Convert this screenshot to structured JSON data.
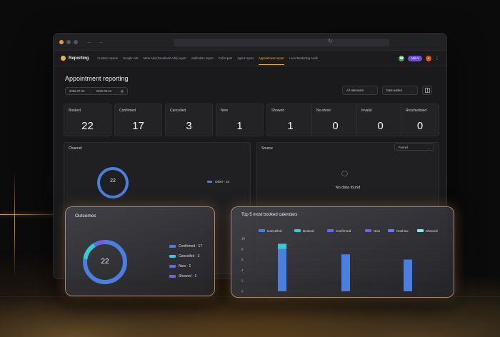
{
  "colors": {
    "accent": "#f0b232",
    "blue": "#4a7fe0",
    "cyan": "#38c8d8",
    "purple": "#7a5ce6",
    "indigo": "#5a6cf0"
  },
  "app": {
    "brand": "Reporting",
    "nav": [
      {
        "label": "Custom reports"
      },
      {
        "label": "Google Ads"
      },
      {
        "label": "Meta Ads (Facebook Ads) report"
      },
      {
        "label": "Attribution report"
      },
      {
        "label": "Call report"
      },
      {
        "label": "Agent report"
      },
      {
        "label": "Appointment report",
        "active": true
      },
      {
        "label": "Local Marketing Audit"
      }
    ],
    "ai_label": "Ask AI",
    "avatar_initial": "A"
  },
  "page": {
    "title": "Appointment reporting",
    "date_start": "2026-07-26",
    "date_end": "2026-08-24",
    "calendar_filter": "All calendars",
    "date_filter": "Date added"
  },
  "stats": [
    {
      "label": "Booked",
      "value": "22"
    },
    {
      "label": "Confirmed",
      "value": "17"
    },
    {
      "label": "Cancelled",
      "value": "3"
    },
    {
      "label": "New",
      "value": "1"
    },
    {
      "label": "Showed",
      "value": "1"
    },
    {
      "label": "No-show",
      "value": "0"
    },
    {
      "label": "Invalid",
      "value": "0"
    },
    {
      "label": "Rescheduled",
      "value": "0"
    }
  ],
  "channel": {
    "title": "Channel",
    "total": "22",
    "legend": "Other - 22"
  },
  "source": {
    "title": "Source",
    "select": "Funnel",
    "empty": "No data found"
  },
  "outcomes": {
    "title": "Outcomes",
    "total": "22",
    "legend": [
      {
        "label": "Confirmed - 17",
        "color": "#4a7fe0"
      },
      {
        "label": "Cancelled - 3",
        "color": "#38c8d8"
      },
      {
        "label": "New - 1",
        "color": "#5a6cf0"
      },
      {
        "label": "Showed - 1",
        "color": "#7a5ce6"
      }
    ]
  },
  "top_calendars": {
    "title": "Top 5 most booked calendars"
  },
  "chart_data": {
    "type": "bar",
    "stacked": true,
    "legend_position": "top",
    "categories": [
      "",
      "",
      ""
    ],
    "ylim": [
      0,
      10
    ],
    "yticks": [
      0,
      2,
      4,
      6,
      8,
      10
    ],
    "series": [
      {
        "name": "Cancelled",
        "color": "#4a7fe0",
        "values": [
          8,
          7,
          6
        ]
      },
      {
        "name": "Booked",
        "color": "#38c8d8",
        "values": [
          1,
          0,
          0
        ]
      },
      {
        "name": "Confirmed",
        "color": "#5a6cf0",
        "values": [
          0,
          0,
          0
        ]
      },
      {
        "name": "New",
        "color": "#7a5ce6",
        "values": [
          0,
          0,
          0
        ]
      },
      {
        "name": "Noshow",
        "color": "#5b7ef2",
        "values": [
          0,
          0,
          0
        ]
      },
      {
        "name": "Showed",
        "color": "#8fe3ec",
        "values": [
          0,
          0,
          0
        ]
      }
    ]
  }
}
